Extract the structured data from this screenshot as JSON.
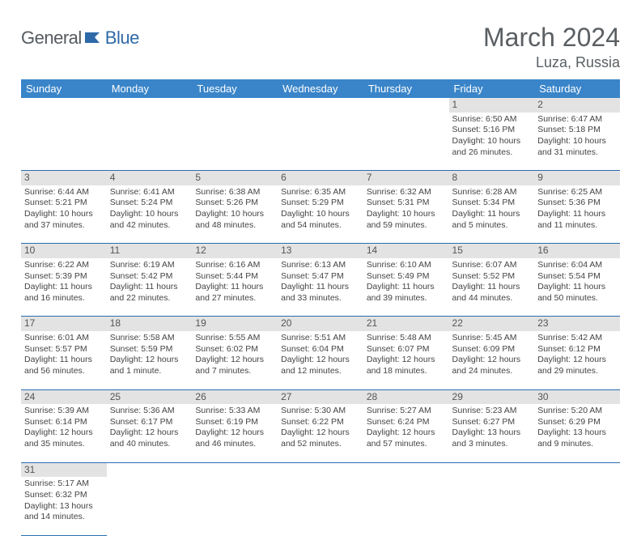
{
  "header": {
    "logo_part1": "General",
    "logo_part2": "Blue",
    "month_title": "March 2024",
    "location": "Luza, Russia"
  },
  "colors": {
    "header_bar": "#3a85c9",
    "header_text": "#ffffff",
    "daynum_bg": "#e3e3e3",
    "row_border": "#2a6db0",
    "logo_gray": "#555b60",
    "logo_blue": "#2f6aa8"
  },
  "weekdays": [
    "Sunday",
    "Monday",
    "Tuesday",
    "Wednesday",
    "Thursday",
    "Friday",
    "Saturday"
  ],
  "weeks": [
    {
      "nums": [
        "",
        "",
        "",
        "",
        "",
        "1",
        "2"
      ],
      "cells": [
        null,
        null,
        null,
        null,
        null,
        {
          "sunrise": "Sunrise: 6:50 AM",
          "sunset": "Sunset: 5:16 PM",
          "day1": "Daylight: 10 hours",
          "day2": "and 26 minutes."
        },
        {
          "sunrise": "Sunrise: 6:47 AM",
          "sunset": "Sunset: 5:18 PM",
          "day1": "Daylight: 10 hours",
          "day2": "and 31 minutes."
        }
      ]
    },
    {
      "nums": [
        "3",
        "4",
        "5",
        "6",
        "7",
        "8",
        "9"
      ],
      "cells": [
        {
          "sunrise": "Sunrise: 6:44 AM",
          "sunset": "Sunset: 5:21 PM",
          "day1": "Daylight: 10 hours",
          "day2": "and 37 minutes."
        },
        {
          "sunrise": "Sunrise: 6:41 AM",
          "sunset": "Sunset: 5:24 PM",
          "day1": "Daylight: 10 hours",
          "day2": "and 42 minutes."
        },
        {
          "sunrise": "Sunrise: 6:38 AM",
          "sunset": "Sunset: 5:26 PM",
          "day1": "Daylight: 10 hours",
          "day2": "and 48 minutes."
        },
        {
          "sunrise": "Sunrise: 6:35 AM",
          "sunset": "Sunset: 5:29 PM",
          "day1": "Daylight: 10 hours",
          "day2": "and 54 minutes."
        },
        {
          "sunrise": "Sunrise: 6:32 AM",
          "sunset": "Sunset: 5:31 PM",
          "day1": "Daylight: 10 hours",
          "day2": "and 59 minutes."
        },
        {
          "sunrise": "Sunrise: 6:28 AM",
          "sunset": "Sunset: 5:34 PM",
          "day1": "Daylight: 11 hours",
          "day2": "and 5 minutes."
        },
        {
          "sunrise": "Sunrise: 6:25 AM",
          "sunset": "Sunset: 5:36 PM",
          "day1": "Daylight: 11 hours",
          "day2": "and 11 minutes."
        }
      ]
    },
    {
      "nums": [
        "10",
        "11",
        "12",
        "13",
        "14",
        "15",
        "16"
      ],
      "cells": [
        {
          "sunrise": "Sunrise: 6:22 AM",
          "sunset": "Sunset: 5:39 PM",
          "day1": "Daylight: 11 hours",
          "day2": "and 16 minutes."
        },
        {
          "sunrise": "Sunrise: 6:19 AM",
          "sunset": "Sunset: 5:42 PM",
          "day1": "Daylight: 11 hours",
          "day2": "and 22 minutes."
        },
        {
          "sunrise": "Sunrise: 6:16 AM",
          "sunset": "Sunset: 5:44 PM",
          "day1": "Daylight: 11 hours",
          "day2": "and 27 minutes."
        },
        {
          "sunrise": "Sunrise: 6:13 AM",
          "sunset": "Sunset: 5:47 PM",
          "day1": "Daylight: 11 hours",
          "day2": "and 33 minutes."
        },
        {
          "sunrise": "Sunrise: 6:10 AM",
          "sunset": "Sunset: 5:49 PM",
          "day1": "Daylight: 11 hours",
          "day2": "and 39 minutes."
        },
        {
          "sunrise": "Sunrise: 6:07 AM",
          "sunset": "Sunset: 5:52 PM",
          "day1": "Daylight: 11 hours",
          "day2": "and 44 minutes."
        },
        {
          "sunrise": "Sunrise: 6:04 AM",
          "sunset": "Sunset: 5:54 PM",
          "day1": "Daylight: 11 hours",
          "day2": "and 50 minutes."
        }
      ]
    },
    {
      "nums": [
        "17",
        "18",
        "19",
        "20",
        "21",
        "22",
        "23"
      ],
      "cells": [
        {
          "sunrise": "Sunrise: 6:01 AM",
          "sunset": "Sunset: 5:57 PM",
          "day1": "Daylight: 11 hours",
          "day2": "and 56 minutes."
        },
        {
          "sunrise": "Sunrise: 5:58 AM",
          "sunset": "Sunset: 5:59 PM",
          "day1": "Daylight: 12 hours",
          "day2": "and 1 minute."
        },
        {
          "sunrise": "Sunrise: 5:55 AM",
          "sunset": "Sunset: 6:02 PM",
          "day1": "Daylight: 12 hours",
          "day2": "and 7 minutes."
        },
        {
          "sunrise": "Sunrise: 5:51 AM",
          "sunset": "Sunset: 6:04 PM",
          "day1": "Daylight: 12 hours",
          "day2": "and 12 minutes."
        },
        {
          "sunrise": "Sunrise: 5:48 AM",
          "sunset": "Sunset: 6:07 PM",
          "day1": "Daylight: 12 hours",
          "day2": "and 18 minutes."
        },
        {
          "sunrise": "Sunrise: 5:45 AM",
          "sunset": "Sunset: 6:09 PM",
          "day1": "Daylight: 12 hours",
          "day2": "and 24 minutes."
        },
        {
          "sunrise": "Sunrise: 5:42 AM",
          "sunset": "Sunset: 6:12 PM",
          "day1": "Daylight: 12 hours",
          "day2": "and 29 minutes."
        }
      ]
    },
    {
      "nums": [
        "24",
        "25",
        "26",
        "27",
        "28",
        "29",
        "30"
      ],
      "cells": [
        {
          "sunrise": "Sunrise: 5:39 AM",
          "sunset": "Sunset: 6:14 PM",
          "day1": "Daylight: 12 hours",
          "day2": "and 35 minutes."
        },
        {
          "sunrise": "Sunrise: 5:36 AM",
          "sunset": "Sunset: 6:17 PM",
          "day1": "Daylight: 12 hours",
          "day2": "and 40 minutes."
        },
        {
          "sunrise": "Sunrise: 5:33 AM",
          "sunset": "Sunset: 6:19 PM",
          "day1": "Daylight: 12 hours",
          "day2": "and 46 minutes."
        },
        {
          "sunrise": "Sunrise: 5:30 AM",
          "sunset": "Sunset: 6:22 PM",
          "day1": "Daylight: 12 hours",
          "day2": "and 52 minutes."
        },
        {
          "sunrise": "Sunrise: 5:27 AM",
          "sunset": "Sunset: 6:24 PM",
          "day1": "Daylight: 12 hours",
          "day2": "and 57 minutes."
        },
        {
          "sunrise": "Sunrise: 5:23 AM",
          "sunset": "Sunset: 6:27 PM",
          "day1": "Daylight: 13 hours",
          "day2": "and 3 minutes."
        },
        {
          "sunrise": "Sunrise: 5:20 AM",
          "sunset": "Sunset: 6:29 PM",
          "day1": "Daylight: 13 hours",
          "day2": "and 9 minutes."
        }
      ]
    },
    {
      "nums": [
        "31",
        "",
        "",
        "",
        "",
        "",
        ""
      ],
      "cells": [
        {
          "sunrise": "Sunrise: 5:17 AM",
          "sunset": "Sunset: 6:32 PM",
          "day1": "Daylight: 13 hours",
          "day2": "and 14 minutes."
        },
        null,
        null,
        null,
        null,
        null,
        null
      ]
    }
  ]
}
